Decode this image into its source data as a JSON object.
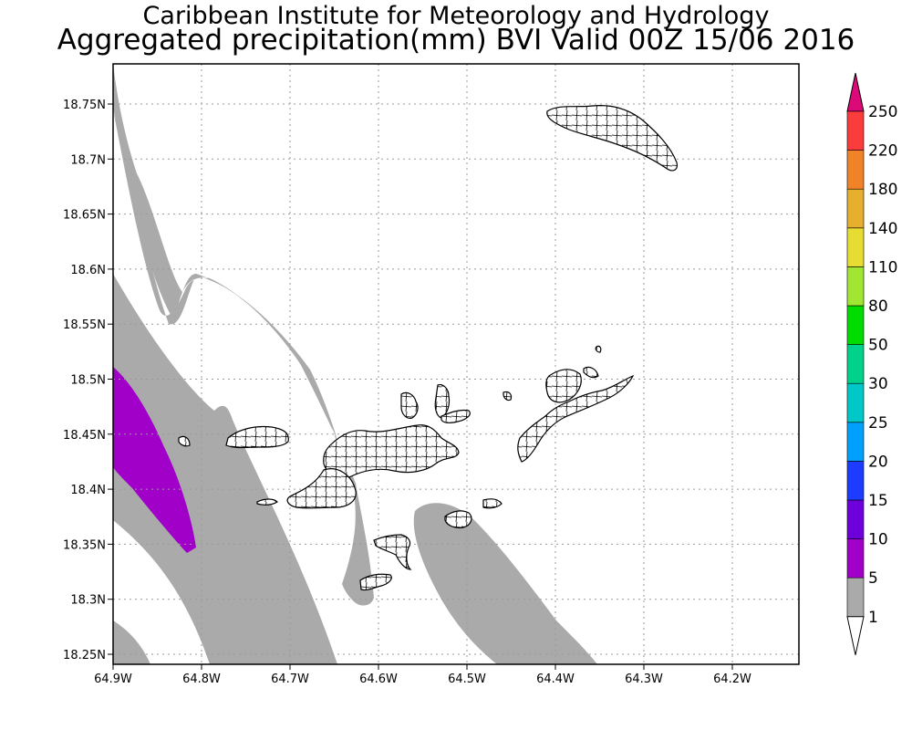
{
  "title": {
    "line1": "Caribbean Institute for Meteorology and Hydrology",
    "line2": "Aggregated precipitation(mm) BVI Valid 00Z 15/06 2016"
  },
  "map": {
    "lon_ticks": [
      "64.9W",
      "64.8W",
      "64.7W",
      "64.6W",
      "64.5W",
      "64.4W",
      "64.3W",
      "64.2W"
    ],
    "lat_ticks": [
      "18.75N",
      "18.7N",
      "18.65N",
      "18.6N",
      "18.55N",
      "18.5N",
      "18.45N",
      "18.4N",
      "18.35N",
      "18.3N",
      "18.25N"
    ],
    "grid": true
  },
  "colorbar": {
    "labels": [
      "1",
      "5",
      "10",
      "15",
      "20",
      "25",
      "30",
      "50",
      "80",
      "110",
      "140",
      "180",
      "220",
      "250"
    ],
    "colors": [
      "#ffffff",
      "#aaaaaa",
      "#a000c8",
      "#6e00dc",
      "#1e3cff",
      "#00a0ff",
      "#00c8c8",
      "#00d28c",
      "#00dc00",
      "#a0e632",
      "#e6dc32",
      "#e6af2d",
      "#f08228",
      "#fa3c3c",
      "#dc0a78"
    ]
  },
  "legend_colors": {
    "rain_1_5": "#aaaaaa",
    "rain_5_10": "#a000c8",
    "land_fill": "#ffffff",
    "coast": "#000000"
  }
}
